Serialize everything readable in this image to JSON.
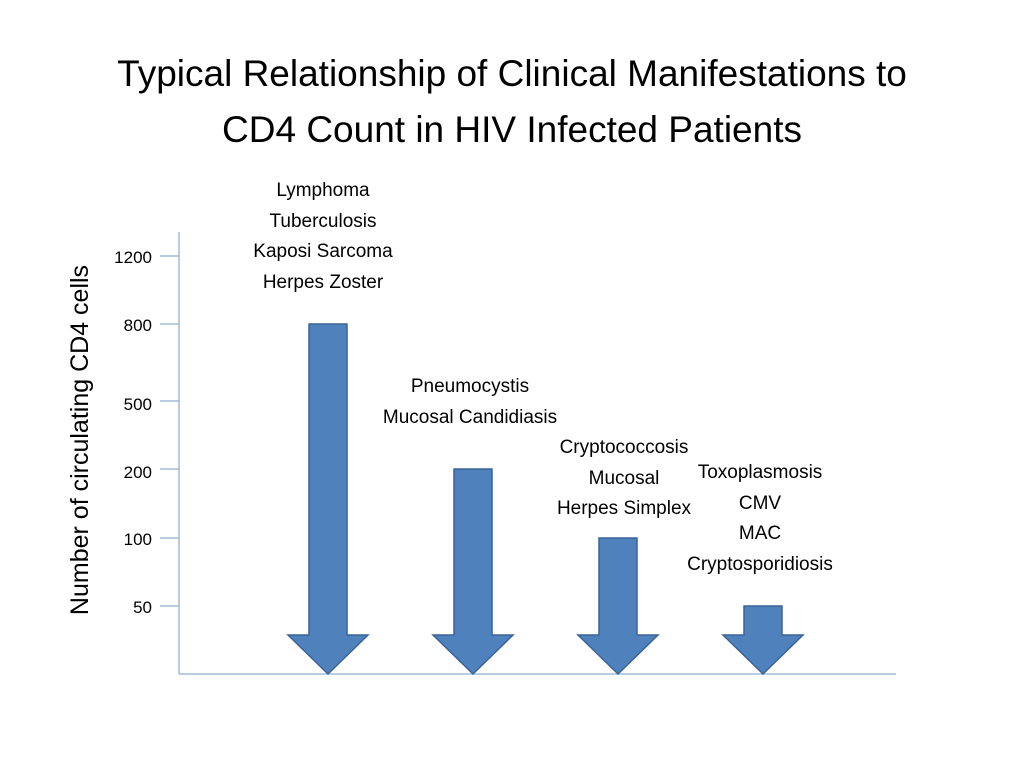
{
  "title": [
    "Typical Relationship of Clinical Manifestations to",
    "CD4 Count in HIV Infected Patients"
  ],
  "y_axis_label": "Number of circulating CD4 cells",
  "y_ticks": [
    "1200",
    "800",
    "500",
    "200",
    "100",
    "50"
  ],
  "arrow_color": "#4f81bd",
  "arrow_outline": "#3a6496",
  "axis_color": "#a3bbd6",
  "groups": [
    {
      "cd4": 800,
      "conditions": [
        "Lymphoma",
        "Tuberculosis",
        "Kaposi Sarcoma",
        "Herpes Zoster"
      ]
    },
    {
      "cd4": 200,
      "conditions": [
        "Pneumocystis",
        "Mucosal Candidiasis"
      ]
    },
    {
      "cd4": 100,
      "conditions": [
        "Cryptococcosis",
        "Mucosal",
        "Herpes Simplex"
      ]
    },
    {
      "cd4": 50,
      "conditions": [
        "Toxoplasmosis",
        "CMV",
        "MAC",
        "Cryptosporidiosis"
      ]
    }
  ]
}
